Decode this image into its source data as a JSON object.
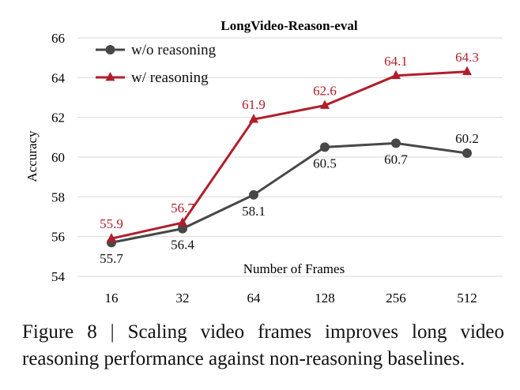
{
  "chart_data": {
    "type": "line",
    "title": "LongVideo-Reason-eval",
    "xlabel": "Number of Frames",
    "ylabel": "Accuracy",
    "categories": [
      "16",
      "32",
      "64",
      "128",
      "256",
      "512"
    ],
    "ylim": [
      54,
      66
    ],
    "yticks": [
      54,
      56,
      58,
      60,
      62,
      64,
      66
    ],
    "grid": true,
    "legend_position": "top-left",
    "series": [
      {
        "name": "w/o reasoning",
        "color": "#474747",
        "marker": "circle",
        "values": [
          55.7,
          56.4,
          58.1,
          60.5,
          60.7,
          60.2
        ],
        "labels": [
          "55.7",
          "56.4",
          "58.1",
          "60.5",
          "60.7",
          "60.2"
        ]
      },
      {
        "name": "w/ reasoning",
        "color": "#b01e2a",
        "marker": "triangle",
        "values": [
          55.9,
          56.7,
          61.9,
          62.6,
          64.1,
          64.3
        ],
        "labels": [
          "55.9",
          "56.7",
          "61.9",
          "62.6",
          "64.1",
          "64.3"
        ]
      }
    ]
  },
  "caption": "Figure 8 | Scaling video frames improves long video reasoning performance against non-reasoning baselines."
}
